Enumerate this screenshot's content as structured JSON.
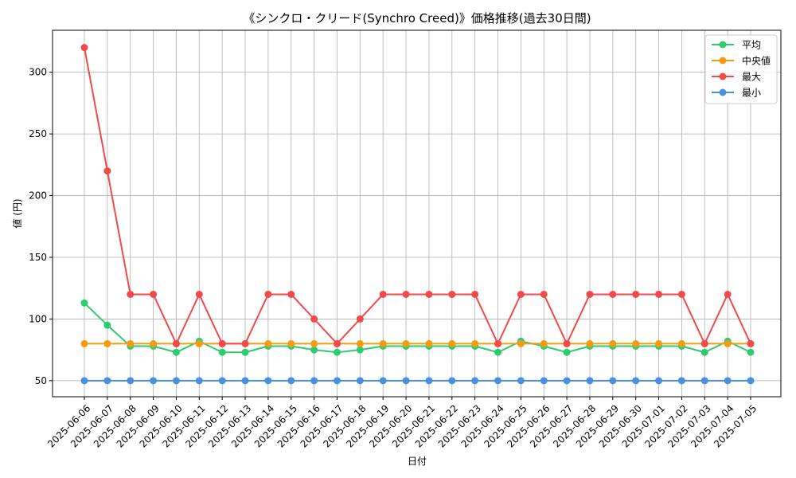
{
  "chart_data": {
    "type": "line",
    "title": "《シンクロ・クリード(Synchro Creed)》価格推移(過去30日間)",
    "xlabel": "日付",
    "ylabel": "値 (円)",
    "ylim": [
      37,
      334
    ],
    "yticks": [
      50,
      100,
      150,
      200,
      250,
      300
    ],
    "grid": true,
    "legend_position": "top-right",
    "categories": [
      "2025-06-06",
      "2025-06-07",
      "2025-06-08",
      "2025-06-09",
      "2025-06-10",
      "2025-06-11",
      "2025-06-12",
      "2025-06-13",
      "2025-06-14",
      "2025-06-15",
      "2025-06-16",
      "2025-06-17",
      "2025-06-18",
      "2025-06-19",
      "2025-06-20",
      "2025-06-21",
      "2025-06-22",
      "2025-06-23",
      "2025-06-24",
      "2025-06-25",
      "2025-06-26",
      "2025-06-27",
      "2025-06-28",
      "2025-06-29",
      "2025-06-30",
      "2025-07-01",
      "2025-07-02",
      "2025-07-03",
      "2025-07-04",
      "2025-07-05"
    ],
    "series": [
      {
        "name": "平均",
        "color": "#2ecc71",
        "values": [
          113,
          95,
          78,
          78,
          73,
          82,
          73,
          73,
          78,
          78,
          75,
          73,
          75,
          78,
          78,
          78,
          78,
          78,
          73,
          82,
          78,
          73,
          78,
          78,
          78,
          78,
          78,
          73,
          82,
          73
        ]
      },
      {
        "name": "中央値",
        "color": "#f39c12",
        "values": [
          80,
          80,
          80,
          80,
          80,
          80,
          80,
          80,
          80,
          80,
          80,
          80,
          80,
          80,
          80,
          80,
          80,
          80,
          80,
          80,
          80,
          80,
          80,
          80,
          80,
          80,
          80,
          80,
          80,
          80
        ]
      },
      {
        "name": "最大",
        "color": "#f04a4a",
        "values": [
          320,
          220,
          120,
          120,
          80,
          120,
          80,
          80,
          120,
          120,
          100,
          80,
          100,
          120,
          120,
          120,
          120,
          120,
          80,
          120,
          120,
          80,
          120,
          120,
          120,
          120,
          120,
          80,
          120,
          80
        ]
      },
      {
        "name": "最小",
        "color": "#4a90e2",
        "values": [
          50,
          50,
          50,
          50,
          50,
          50,
          50,
          50,
          50,
          50,
          50,
          50,
          50,
          50,
          50,
          50,
          50,
          50,
          50,
          50,
          50,
          50,
          50,
          50,
          50,
          50,
          50,
          50,
          50,
          50
        ]
      }
    ]
  }
}
